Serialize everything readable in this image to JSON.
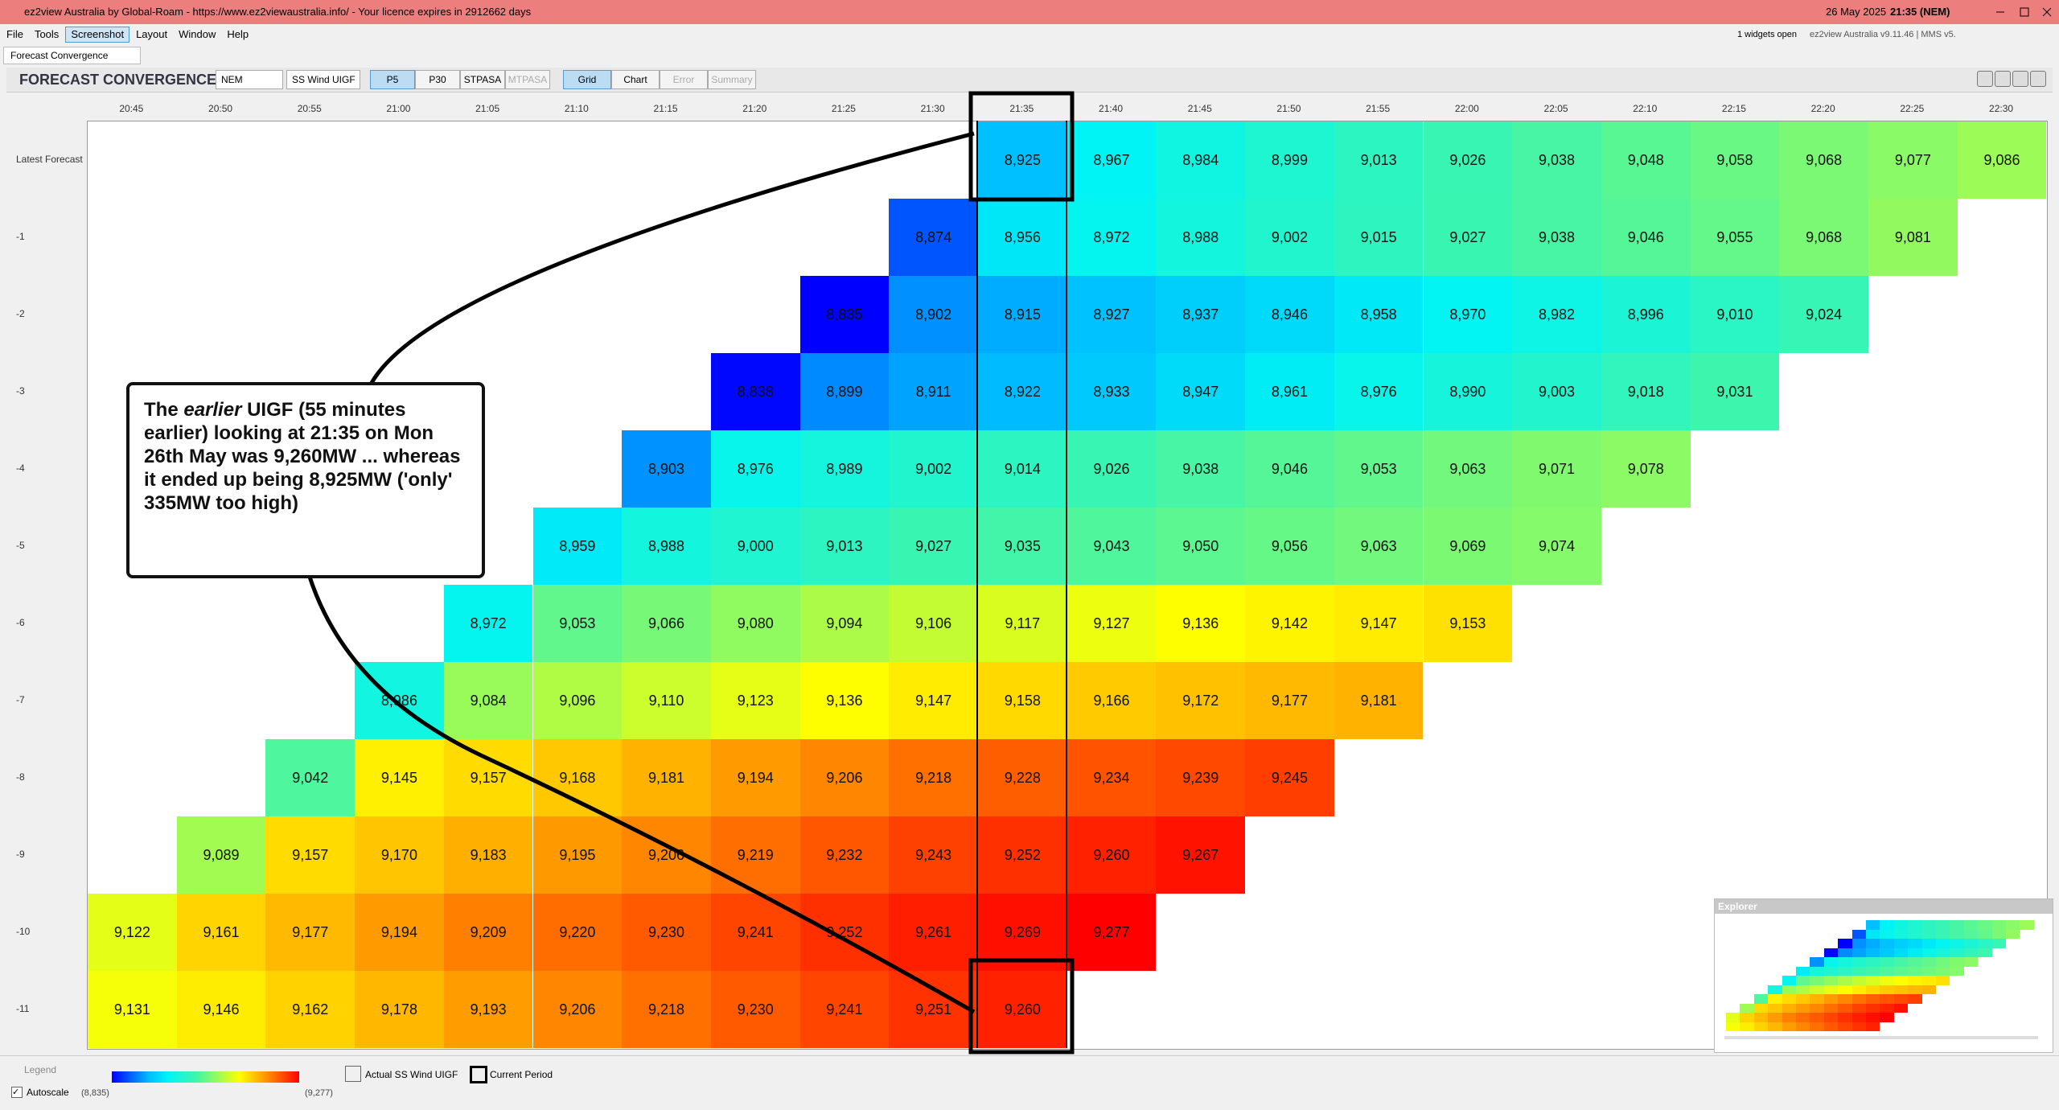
{
  "window": {
    "title": "ez2view Australia by Global-Roam - https://www.ez2viewaustralia.info/ - Your licence expires in 2912662 days",
    "date": "26 May 2025",
    "time": "21:35 (NEM)"
  },
  "menu": [
    "File",
    "Tools",
    "Screenshot",
    "Layout",
    "Window",
    "Help"
  ],
  "status": {
    "widgets": "1 widgets open",
    "version": "ez2view Australia v9.11.46 | MMS v5."
  },
  "tabs": [
    "Forecast Convergence"
  ],
  "toolbar": {
    "title": "FORECAST CONVERGENCE",
    "region": "NEM",
    "measure": "SS Wind UIGF",
    "horizons": [
      "P5",
      "P30",
      "STPASA",
      "MTPASA"
    ],
    "views": [
      "Grid",
      "Chart",
      "Error",
      "Summary"
    ]
  },
  "table": {
    "columns": [
      "20:45",
      "20:50",
      "20:55",
      "21:00",
      "21:05",
      "21:10",
      "21:15",
      "21:20",
      "21:25",
      "21:30",
      "21:35",
      "21:40",
      "21:45",
      "21:50",
      "21:55",
      "22:00",
      "22:05",
      "22:10",
      "22:15",
      "22:20",
      "22:25",
      "22:30"
    ],
    "rows": [
      {
        "label": "Latest Forecast",
        "cells": [
          null,
          null,
          null,
          null,
          null,
          null,
          null,
          null,
          null,
          null,
          "8,925",
          "8,967",
          "8,984",
          "8,999",
          "9,013",
          "9,026",
          "9,038",
          "9,048",
          "9,058",
          "9,068",
          "9,077",
          "9,086"
        ]
      },
      {
        "label": "-1",
        "cells": [
          null,
          null,
          null,
          null,
          null,
          null,
          null,
          null,
          null,
          "8,874",
          "8,956",
          "8,972",
          "8,988",
          "9,002",
          "9,015",
          "9,027",
          "9,038",
          "9,046",
          "9,055",
          "9,068",
          "9,081",
          null
        ]
      },
      {
        "label": "-2",
        "cells": [
          null,
          null,
          null,
          null,
          null,
          null,
          null,
          null,
          "8,835",
          "8,902",
          "8,915",
          "8,927",
          "8,937",
          "8,946",
          "8,958",
          "8,970",
          "8,982",
          "8,996",
          "9,010",
          "9,024",
          null,
          null
        ]
      },
      {
        "label": "-3",
        "cells": [
          null,
          null,
          null,
          null,
          null,
          null,
          null,
          "8,838",
          "8,899",
          "8,911",
          "8,922",
          "8,933",
          "8,947",
          "8,961",
          "8,976",
          "8,990",
          "9,003",
          "9,018",
          "9,031",
          null,
          null,
          null
        ]
      },
      {
        "label": "-4",
        "cells": [
          null,
          null,
          null,
          null,
          null,
          null,
          "8,903",
          "8,976",
          "8,989",
          "9,002",
          "9,014",
          "9,026",
          "9,038",
          "9,046",
          "9,053",
          "9,063",
          "9,071",
          "9,078",
          null,
          null,
          null,
          null
        ]
      },
      {
        "label": "-5",
        "cells": [
          null,
          null,
          null,
          null,
          null,
          "8,959",
          "8,988",
          "9,000",
          "9,013",
          "9,027",
          "9,035",
          "9,043",
          "9,050",
          "9,056",
          "9,063",
          "9,069",
          "9,074",
          null,
          null,
          null,
          null,
          null
        ]
      },
      {
        "label": "-6",
        "cells": [
          null,
          null,
          null,
          null,
          "8,972",
          "9,053",
          "9,066",
          "9,080",
          "9,094",
          "9,106",
          "9,117",
          "9,127",
          "9,136",
          "9,142",
          "9,147",
          "9,153",
          null,
          null,
          null,
          null,
          null,
          null
        ]
      },
      {
        "label": "-7",
        "cells": [
          null,
          null,
          null,
          "8,986",
          "9,084",
          "9,096",
          "9,110",
          "9,123",
          "9,136",
          "9,147",
          "9,158",
          "9,166",
          "9,172",
          "9,177",
          "9,181",
          null,
          null,
          null,
          null,
          null,
          null,
          null
        ]
      },
      {
        "label": "-8",
        "cells": [
          null,
          null,
          "9,042",
          "9,145",
          "9,157",
          "9,168",
          "9,181",
          "9,194",
          "9,206",
          "9,218",
          "9,228",
          "9,234",
          "9,239",
          "9,245",
          null,
          null,
          null,
          null,
          null,
          null,
          null,
          null
        ]
      },
      {
        "label": "-9",
        "cells": [
          null,
          "9,089",
          "9,157",
          "9,170",
          "9,183",
          "9,195",
          "9,206",
          "9,219",
          "9,232",
          "9,243",
          "9,252",
          "9,260",
          "9,267",
          null,
          null,
          null,
          null,
          null,
          null,
          null,
          null,
          null
        ]
      },
      {
        "label": "-10",
        "cells": [
          "9,122",
          "9,161",
          "9,177",
          "9,194",
          "9,209",
          "9,220",
          "9,230",
          "9,241",
          "9,252",
          "9,261",
          "9,269",
          "9,277",
          null,
          null,
          null,
          null,
          null,
          null,
          null,
          null,
          null,
          null
        ]
      },
      {
        "label": "-11",
        "cells": [
          "9,131",
          "9,146",
          "9,162",
          "9,178",
          "9,193",
          "9,206",
          "9,218",
          "9,230",
          "9,241",
          "9,251",
          "9,260",
          null,
          null,
          null,
          null,
          null,
          null,
          null,
          null,
          null,
          null,
          null
        ]
      }
    ]
  },
  "callout": {
    "before": "The ",
    "emphasis": "earlier",
    "after": " UIGF (55 minutes earlier) looking at 21:35 on Mon 26th May was 9,260MW ... whereas it ended up being 8,925MW ('only' 335MW too high)"
  },
  "legend": {
    "title": "Legend",
    "min": "(8,835)",
    "max": "(9,277)",
    "autoscale": "Autoscale",
    "items": [
      "Actual SS Wind UIGF",
      "Current Period"
    ]
  },
  "explorer": {
    "title": "Explorer"
  }
}
